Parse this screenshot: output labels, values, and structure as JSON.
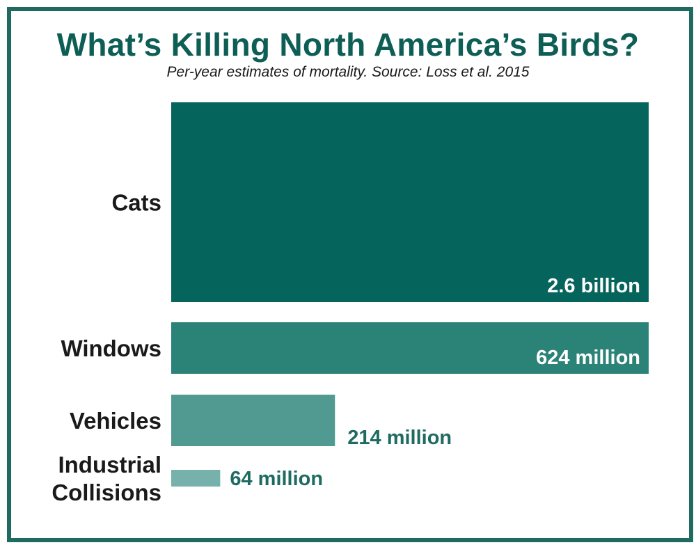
{
  "chart_data": {
    "type": "bar",
    "orientation": "horizontal",
    "title": "What’s Killing North America’s Birds?",
    "subtitle": "Per-year estimates of mortality. Source: Loss et al. 2015",
    "categories": [
      "Cats",
      "Windows",
      "Vehicles",
      "Industrial Collisions"
    ],
    "category_lines": [
      [
        "Cats"
      ],
      [
        "Windows"
      ],
      [
        "Vehicles"
      ],
      [
        "Industrial",
        "Collisions"
      ]
    ],
    "values": [
      2600000000,
      624000000,
      214000000,
      64000000
    ],
    "value_labels": [
      "2.6 billion",
      "624 million",
      "214 million",
      "64 million"
    ],
    "bar_colors": [
      "#05645b",
      "#2b8277",
      "#509a91",
      "#76b1ab"
    ],
    "value_label_colors": [
      "#ffffff",
      "#ffffff",
      "#1f6b62",
      "#1f6b62"
    ],
    "value_label_position": [
      "inside-bottom-right",
      "inside-bottom-right",
      "outside-bottom",
      "outside-right"
    ],
    "axis_break": true,
    "grid": false,
    "legend": "none"
  },
  "colors": {
    "frame": "#1f6b62",
    "title": "#0d5e55",
    "text": "#1a1a1a"
  }
}
